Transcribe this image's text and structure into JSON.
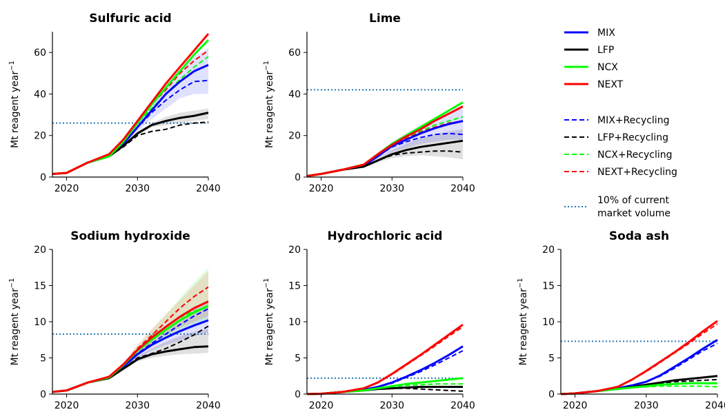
{
  "figure": {
    "ylabel_text": "Mt reagent year",
    "ylabel_sup": "−1"
  },
  "legend": {
    "entries": [
      {
        "label": "MIX",
        "color": "#0000ff",
        "dash": "solid"
      },
      {
        "label": "LFP",
        "color": "#000000",
        "dash": "solid"
      },
      {
        "label": "NCX",
        "color": "#00ff00",
        "dash": "solid"
      },
      {
        "label": "NEXT",
        "color": "#ff0000",
        "dash": "solid"
      },
      {
        "label": "MIX+Recycling",
        "color": "#0000ff",
        "dash": "dashed"
      },
      {
        "label": "LFP+Recycling",
        "color": "#000000",
        "dash": "dashed"
      },
      {
        "label": "NCX+Recycling",
        "color": "#00ff00",
        "dash": "dashed"
      },
      {
        "label": "NEXT+Recycling",
        "color": "#ff0000",
        "dash": "dashed"
      },
      {
        "label_lines": [
          "10% of current",
          "market volume"
        ],
        "color": "#1f77b4",
        "dash": "dotted"
      }
    ]
  },
  "chart_data": [
    {
      "type": "line",
      "title": "Sulfuric acid",
      "ylabel": "Mt reagent year−1",
      "xlim": [
        2018,
        2040
      ],
      "ylim": [
        0,
        70
      ],
      "xticks": [
        "2020",
        "2030",
        "2040"
      ],
      "yticks": [
        "0",
        "20",
        "40",
        "60"
      ],
      "x": [
        2018,
        2020,
        2023,
        2026,
        2028,
        2030,
        2032,
        2034,
        2036,
        2038,
        2040
      ],
      "reference_line": {
        "name": "10% of current market volume",
        "y": 26
      },
      "series": [
        {
          "name": "MIX",
          "values": [
            1.5,
            2,
            7,
            10,
            16,
            24,
            32,
            40,
            46,
            51,
            54
          ],
          "band": [
            [
              1.5,
              2,
              7,
              10,
              15,
              22,
              28,
              33,
              38,
              40,
              40
            ],
            [
              1.5,
              2,
              7,
              10,
              17,
              27,
              36,
              44,
              52,
              58,
              62
            ]
          ]
        },
        {
          "name": "LFP",
          "values": [
            1.5,
            2,
            7,
            10,
            15,
            21,
            25,
            27,
            28.5,
            29.5,
            31
          ],
          "band": [
            [
              1.5,
              2,
              7,
              10,
              15,
              20,
              24,
              25,
              26,
              27,
              28
            ],
            [
              1.5,
              2,
              7,
              10,
              15,
              22,
              26,
              29,
              31,
              32,
              33
            ]
          ]
        },
        {
          "name": "NCX",
          "values": [
            1.5,
            2,
            7,
            10,
            17,
            26,
            35,
            43,
            51,
            59,
            66
          ]
        },
        {
          "name": "NEXT",
          "values": [
            1.5,
            2,
            7,
            11,
            18,
            27,
            36,
            45,
            53,
            61,
            69
          ]
        },
        {
          "name": "MIX+Recycling",
          "values": [
            1.5,
            2,
            7,
            10,
            16,
            24,
            31,
            37,
            42,
            46,
            46.5
          ]
        },
        {
          "name": "LFP+Recycling",
          "values": [
            1.5,
            2,
            7,
            10,
            14.5,
            20,
            22,
            23,
            25,
            26,
            26.5
          ]
        },
        {
          "name": "NCX+Recycling",
          "values": [
            1.5,
            2,
            7,
            10,
            17,
            26,
            33,
            40,
            47,
            53,
            58
          ]
        },
        {
          "name": "NEXT+Recycling",
          "values": [
            1.5,
            2,
            7,
            11,
            18,
            27,
            35,
            42,
            50,
            56,
            61
          ]
        }
      ]
    },
    {
      "type": "line",
      "title": "Lime",
      "ylabel": "Mt reagent year−1",
      "xlim": [
        2018,
        2040
      ],
      "ylim": [
        0,
        70
      ],
      "xticks": [
        "2020",
        "2030",
        "2040"
      ],
      "yticks": [
        "0",
        "20",
        "40",
        "60"
      ],
      "x": [
        2018,
        2020,
        2023,
        2026,
        2028,
        2030,
        2032,
        2034,
        2036,
        2038,
        2040
      ],
      "reference_line": {
        "name": "10% of current market volume",
        "y": 42
      },
      "series": [
        {
          "name": "MIX",
          "values": [
            0.5,
            1.5,
            3.5,
            5.5,
            10,
            15,
            18,
            21,
            23.5,
            25.5,
            27
          ],
          "band": [
            [
              0.5,
              1.5,
              3.5,
              5,
              9,
              12,
              14,
              16,
              17,
              18,
              18
            ],
            [
              0.5,
              1.5,
              3.5,
              6,
              11,
              17,
              21,
              25,
              28,
              31,
              33
            ]
          ]
        },
        {
          "name": "LFP",
          "values": [
            0.5,
            1.5,
            3.5,
            5,
            8,
            11,
            13,
            14.5,
            15.5,
            16.5,
            17.5
          ],
          "band": [
            [
              0.5,
              1.5,
              3.5,
              4.5,
              7,
              9,
              10,
              10.5,
              10,
              9.5,
              8.5
            ],
            [
              0.5,
              1.5,
              3.5,
              5.5,
              9,
              13,
              16,
              18.5,
              20.5,
              22,
              23
            ]
          ]
        },
        {
          "name": "NCX",
          "values": [
            0.5,
            1.5,
            3.5,
            6,
            11,
            16,
            20,
            24,
            28,
            32,
            36
          ]
        },
        {
          "name": "NEXT",
          "values": [
            0.5,
            1.5,
            3.5,
            6,
            11,
            15.5,
            19.5,
            23,
            27,
            30.5,
            34
          ]
        },
        {
          "name": "MIX+Recycling",
          "values": [
            0.5,
            1.5,
            3.5,
            5.5,
            10,
            14.5,
            17,
            19,
            20.5,
            21,
            20.5
          ]
        },
        {
          "name": "LFP+Recycling",
          "values": [
            0.5,
            1.5,
            3.5,
            5,
            8,
            10.5,
            11.5,
            12,
            12.5,
            12.5,
            12
          ]
        },
        {
          "name": "NCX+Recycling",
          "values": [
            0.5,
            1.5,
            3.5,
            6,
            11,
            15.5,
            19,
            22,
            25,
            27,
            29
          ]
        },
        {
          "name": "NEXT+Recycling",
          "values": [
            0.5,
            1.5,
            3.5,
            6,
            11,
            15,
            18.5,
            21.5,
            24,
            26,
            27
          ]
        }
      ]
    },
    {
      "type": "line",
      "title": "Sodium hydroxide",
      "ylabel": "Mt reagent year−1",
      "xlim": [
        2018,
        2040
      ],
      "ylim": [
        0,
        20
      ],
      "xticks": [
        "2020",
        "2030",
        "2040"
      ],
      "yticks": [
        "0",
        "5",
        "10",
        "15",
        "20"
      ],
      "x": [
        2018,
        2020,
        2023,
        2026,
        2028,
        2030,
        2032,
        2034,
        2036,
        2038,
        2040
      ],
      "reference_line": {
        "name": "10% of current market volume",
        "y": 8.3
      },
      "series": [
        {
          "name": "MIX",
          "values": [
            0.3,
            0.5,
            1.6,
            2.3,
            3.8,
            5.5,
            6.8,
            7.8,
            8.7,
            9.5,
            10.2
          ],
          "band": [
            [
              0.3,
              0.5,
              1.6,
              2.2,
              3.6,
              5,
              6,
              6.8,
              7.4,
              8,
              8.5
            ],
            [
              0.3,
              0.5,
              1.6,
              2.4,
              4,
              6,
              7.6,
              9,
              10.5,
              12,
              13
            ]
          ]
        },
        {
          "name": "LFP",
          "values": [
            0.3,
            0.5,
            1.6,
            2.2,
            3.5,
            4.8,
            5.5,
            5.9,
            6.2,
            6.5,
            6.6
          ],
          "band": [
            [
              0.3,
              0.5,
              1.6,
              2.1,
              3.3,
              4.5,
              5,
              5.3,
              5.5,
              5.6,
              5.7
            ],
            [
              0.3,
              0.5,
              1.6,
              2.3,
              3.8,
              5.3,
              6.3,
              7.2,
              8,
              8.6,
              9
            ]
          ]
        },
        {
          "name": "NCX",
          "values": [
            0.3,
            0.5,
            1.6,
            2.3,
            4,
            6,
            7.5,
            8.9,
            10.2,
            11.3,
            12.2
          ],
          "band": [
            [
              0.3,
              0.5,
              1.6,
              2.2,
              3.7,
              5.4,
              6.6,
              7.6,
              8.5,
              9.3,
              10
            ],
            [
              0.3,
              0.5,
              1.6,
              2.5,
              4.3,
              6.7,
              8.8,
              11,
              13.3,
              15.5,
              17.5
            ]
          ]
        },
        {
          "name": "NEXT",
          "values": [
            0.3,
            0.5,
            1.6,
            2.4,
            4.1,
            6.1,
            7.8,
            9.3,
            10.7,
            11.9,
            12.8
          ],
          "band": [
            [
              0.3,
              0.5,
              1.6,
              2.2,
              3.8,
              5.6,
              7,
              8.2,
              9.2,
              10,
              10.8
            ],
            [
              0.3,
              0.5,
              1.6,
              2.6,
              4.4,
              6.8,
              9,
              11,
              13,
              15,
              17
            ]
          ]
        },
        {
          "name": "MIX+Recycling",
          "values": [
            0.3,
            0.5,
            1.6,
            2.3,
            3.8,
            5.6,
            7,
            8.3,
            9.6,
            10.8,
            11.8
          ]
        },
        {
          "name": "LFP+Recycling",
          "values": [
            0.3,
            0.5,
            1.6,
            2.2,
            3.5,
            5,
            5.6,
            6.3,
            7.2,
            8.2,
            9.4
          ]
        },
        {
          "name": "NCX+Recycling",
          "values": [
            0.3,
            0.5,
            1.6,
            2.3,
            4,
            6.1,
            7.8,
            9.3,
            10.6,
            11.5,
            12
          ]
        },
        {
          "name": "NEXT+Recycling",
          "values": [
            0.3,
            0.5,
            1.6,
            2.4,
            4.1,
            6.3,
            8.1,
            10,
            11.9,
            13.5,
            14.8
          ]
        }
      ]
    },
    {
      "type": "line",
      "title": "Hydrochloric acid",
      "ylabel": "Mt reagent year−1",
      "xlim": [
        2018,
        2040
      ],
      "ylim": [
        0,
        20
      ],
      "xticks": [
        "2020",
        "2030",
        "2040"
      ],
      "yticks": [
        "0",
        "5",
        "10",
        "15",
        "20"
      ],
      "x": [
        2018,
        2020,
        2023,
        2026,
        2028,
        2030,
        2032,
        2034,
        2036,
        2038,
        2040
      ],
      "reference_line": {
        "name": "10% of current market volume",
        "y": 2.2
      },
      "series": [
        {
          "name": "MIX",
          "values": [
            0,
            0.05,
            0.3,
            0.6,
            1,
            1.6,
            2.4,
            3.3,
            4.3,
            5.4,
            6.6
          ]
        },
        {
          "name": "LFP",
          "values": [
            0,
            0.05,
            0.3,
            0.5,
            0.7,
            0.8,
            0.9,
            1,
            1,
            1,
            1
          ]
        },
        {
          "name": "NCX",
          "values": [
            0,
            0.05,
            0.3,
            0.5,
            0.8,
            1.1,
            1.4,
            1.6,
            1.8,
            2,
            2.2
          ]
        },
        {
          "name": "NEXT",
          "values": [
            0,
            0.05,
            0.3,
            0.8,
            1.6,
            2.8,
            4.1,
            5.4,
            6.8,
            8.2,
            9.6
          ]
        },
        {
          "name": "MIX+Recycling",
          "values": [
            0,
            0.05,
            0.3,
            0.6,
            1,
            1.5,
            2.3,
            3.1,
            4,
            5,
            6
          ]
        },
        {
          "name": "LFP+Recycling",
          "values": [
            0,
            0.05,
            0.3,
            0.5,
            0.7,
            0.8,
            0.8,
            0.7,
            0.6,
            0.5,
            0.4
          ]
        },
        {
          "name": "NCX+Recycling",
          "values": [
            0,
            0.05,
            0.3,
            0.5,
            0.8,
            1,
            1.2,
            1.3,
            1.4,
            1.4,
            1.4
          ]
        },
        {
          "name": "NEXT+Recycling",
          "values": [
            0,
            0.05,
            0.3,
            0.8,
            1.6,
            2.7,
            4,
            5.3,
            6.6,
            8,
            9.3
          ]
        }
      ]
    },
    {
      "type": "line",
      "title": "Soda ash",
      "ylabel": "Mt reagent year−1",
      "xlim": [
        2018,
        2040
      ],
      "ylim": [
        0,
        20
      ],
      "xticks": [
        "2020",
        "2030",
        "2040"
      ],
      "yticks": [
        "0",
        "5",
        "10",
        "15",
        "20"
      ],
      "x": [
        2018,
        2020,
        2023,
        2026,
        2028,
        2030,
        2032,
        2034,
        2036,
        2038,
        2040
      ],
      "reference_line": {
        "name": "10% of current market volume",
        "y": 7.3
      },
      "series": [
        {
          "name": "MIX",
          "values": [
            0,
            0.1,
            0.4,
            0.8,
            1.2,
            1.7,
            2.6,
            3.8,
            5,
            6.3,
            7.5
          ]
        },
        {
          "name": "LFP",
          "values": [
            0,
            0.1,
            0.4,
            0.7,
            1,
            1.3,
            1.6,
            1.9,
            2.1,
            2.3,
            2.5
          ]
        },
        {
          "name": "NCX",
          "values": [
            0,
            0.1,
            0.4,
            0.7,
            0.9,
            1.1,
            1.3,
            1.4,
            1.5,
            1.5,
            1.5
          ]
        },
        {
          "name": "NEXT",
          "values": [
            0,
            0.1,
            0.4,
            1,
            2,
            3.2,
            4.5,
            5.8,
            7.2,
            8.7,
            10.1
          ]
        },
        {
          "name": "MIX+Recycling",
          "values": [
            0,
            0.1,
            0.4,
            0.8,
            1.2,
            1.7,
            2.5,
            3.6,
            4.8,
            6,
            7
          ]
        },
        {
          "name": "LFP+Recycling",
          "values": [
            0,
            0.1,
            0.4,
            0.7,
            1,
            1.3,
            1.5,
            1.7,
            1.8,
            1.9,
            2
          ]
        },
        {
          "name": "NCX+Recycling",
          "values": [
            0,
            0.1,
            0.4,
            0.7,
            0.9,
            1,
            1.1,
            1.1,
            1.1,
            1.1,
            1
          ]
        },
        {
          "name": "NEXT+Recycling",
          "values": [
            0,
            0.1,
            0.4,
            1,
            2,
            3.1,
            4.4,
            5.7,
            7,
            8.4,
            9.7
          ]
        }
      ]
    }
  ]
}
